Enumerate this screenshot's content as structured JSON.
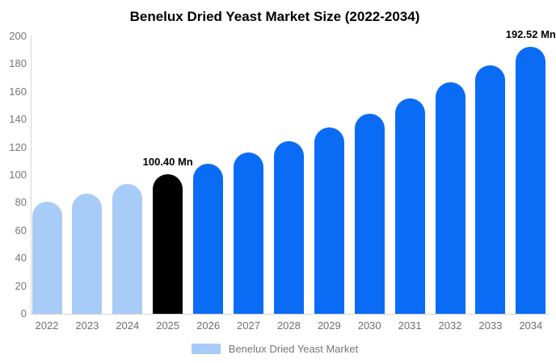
{
  "chart_data": {
    "type": "bar",
    "title": "Benelux Dried Yeast Market Size (2022-2034)",
    "xlabel": "",
    "ylabel": "",
    "categories": [
      "2022",
      "2023",
      "2024",
      "2025",
      "2026",
      "2027",
      "2028",
      "2029",
      "2030",
      "2031",
      "2032",
      "2033",
      "2034"
    ],
    "values": [
      80.8,
      86.9,
      93.4,
      100.4,
      107.9,
      116.0,
      124.7,
      134.1,
      144.1,
      155.0,
      166.6,
      179.1,
      192.52
    ],
    "bar_colors": [
      "#A8CCF8",
      "#A8CCF8",
      "#A8CCF8",
      "#000000",
      "#0A6CF5",
      "#0A6CF5",
      "#0A6CF5",
      "#0A6CF5",
      "#0A6CF5",
      "#0A6CF5",
      "#0A6CF5",
      "#0A6CF5",
      "#0A6CF5"
    ],
    "annotations": [
      {
        "category": "2025",
        "text": "100.40 Mn"
      },
      {
        "category": "2034",
        "text": "192.52 Mn"
      }
    ],
    "ylim": [
      0,
      200
    ],
    "yticks": [
      0,
      20,
      40,
      60,
      80,
      100,
      120,
      140,
      160,
      180,
      200
    ],
    "grid": false,
    "legend": {
      "position": "bottom",
      "entries": [
        {
          "label": "Benelux Dried Yeast Market",
          "color": "#A8CCF8"
        }
      ]
    }
  }
}
